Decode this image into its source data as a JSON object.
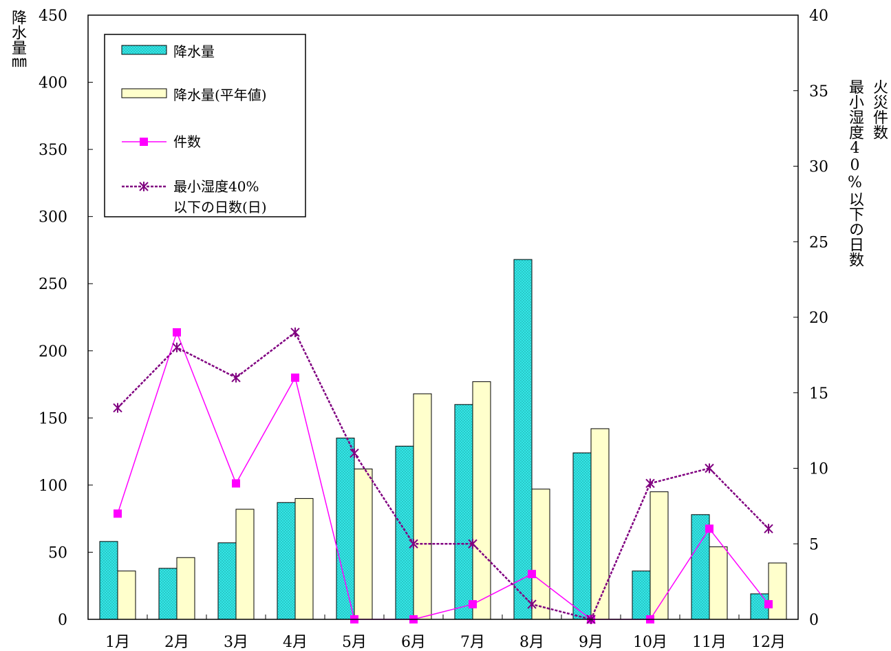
{
  "chart_data": {
    "type": "bar",
    "categories": [
      "1月",
      "2月",
      "3月",
      "4月",
      "5月",
      "6月",
      "7月",
      "8月",
      "9月",
      "10月",
      "11月",
      "12月"
    ],
    "series": [
      {
        "name": "降水量",
        "kind": "bar",
        "axis": "left",
        "color": "#33e6e6",
        "values": [
          58,
          38,
          57,
          87,
          135,
          129,
          160,
          268,
          124,
          36,
          78,
          19
        ]
      },
      {
        "name": "降水量(平年値)",
        "kind": "bar",
        "axis": "left",
        "color": "#ffffcc",
        "values": [
          36,
          46,
          82,
          90,
          112,
          168,
          177,
          97,
          142,
          95,
          54,
          42
        ]
      },
      {
        "name": "件数",
        "kind": "line",
        "axis": "right",
        "color": "#ff00ff",
        "values": [
          7,
          19,
          9,
          16,
          0,
          0,
          1,
          3,
          0,
          0,
          6,
          1
        ]
      },
      {
        "name_lines": [
          "最小湿度40%",
          "以下の日数(日)"
        ],
        "kind": "line",
        "axis": "right",
        "color": "#800080",
        "values": [
          14,
          18,
          16,
          19,
          11,
          5,
          5,
          1,
          0,
          9,
          10,
          6
        ]
      }
    ],
    "y_left": {
      "label": "降水量㎜",
      "ylim": [
        0,
        450
      ],
      "ticks": [
        0,
        50,
        100,
        150,
        200,
        250,
        300,
        350,
        400,
        450
      ]
    },
    "y_right": {
      "label_col1": "火災件数",
      "label_col2": "最小湿度40%以下の日数",
      "ylim": [
        0,
        40
      ],
      "ticks": [
        0,
        5,
        10,
        15,
        20,
        25,
        30,
        35,
        40
      ]
    },
    "legend_position": "top-left",
    "grid": false
  }
}
